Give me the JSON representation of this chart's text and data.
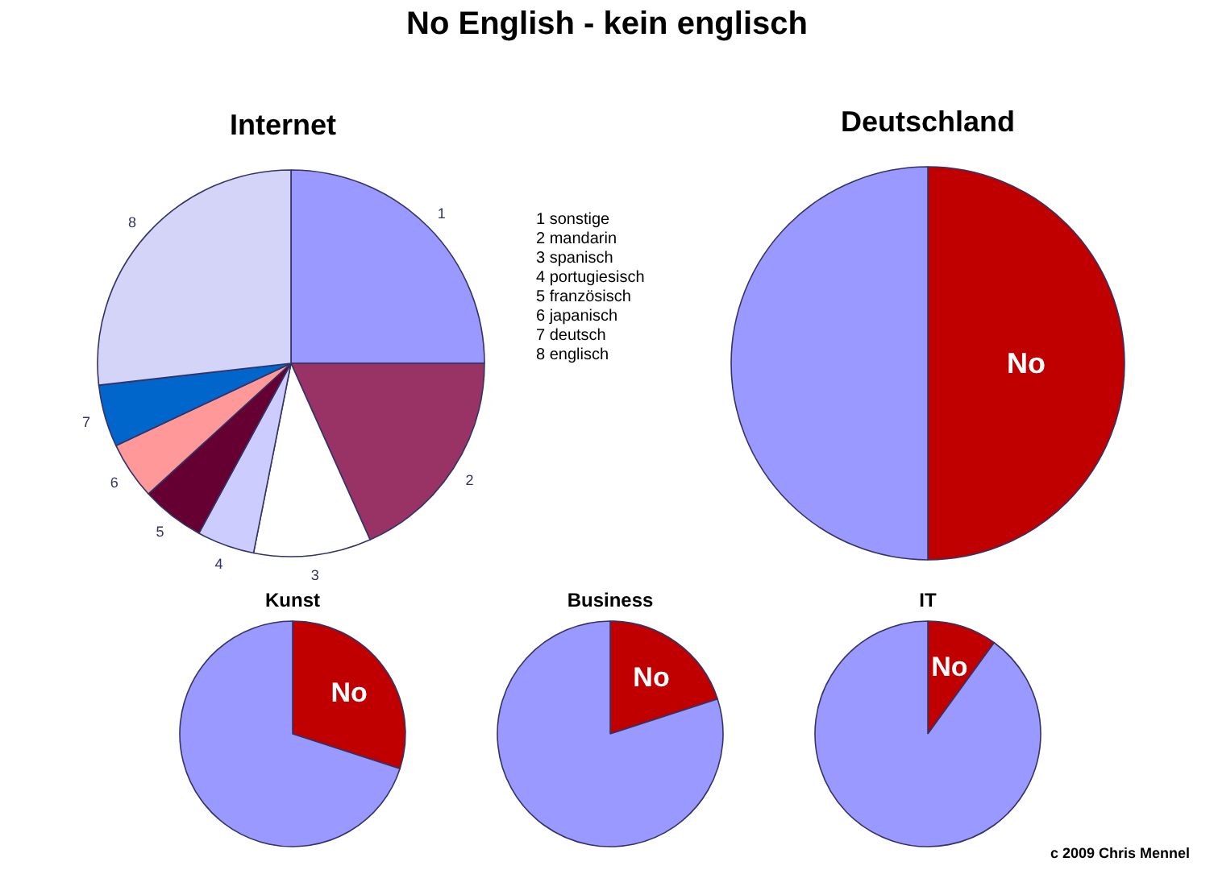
{
  "chart_data": [
    {
      "type": "pie",
      "title": "No English - kein englisch",
      "subtitle": "Internet",
      "categories": [
        "1",
        "2",
        "3",
        "4",
        "5",
        "6",
        "7",
        "8"
      ],
      "values": [
        25,
        18.3,
        9.8,
        4.8,
        5.3,
        4.8,
        5.2,
        26.8
      ],
      "colors": [
        "#9999ff",
        "#993366",
        "#ffffff",
        "#ccccff",
        "#660033",
        "#ff9999",
        "#0066cc",
        "#d4d4f8"
      ],
      "annotations": [
        "1  sonstige",
        "2  mandarin",
        "3  spanisch",
        "4  portugiesisch",
        "5  französisch",
        "6  japanisch",
        "7 deutsch",
        "8  englisch"
      ]
    },
    {
      "type": "pie",
      "title": "Deutschland",
      "categories": [
        "No",
        null
      ],
      "values": [
        50,
        50
      ],
      "colors": [
        "#c00000",
        "#9999ff"
      ]
    },
    {
      "type": "pie",
      "title": "Kunst",
      "categories": [
        "No",
        null
      ],
      "values": [
        30,
        70
      ],
      "colors": [
        "#c00000",
        "#9999ff"
      ]
    },
    {
      "type": "pie",
      "title": "Business",
      "categories": [
        "No",
        null
      ],
      "values": [
        20,
        80
      ],
      "colors": [
        "#c00000",
        "#9999ff"
      ]
    },
    {
      "type": "pie",
      "title": "IT",
      "categories": [
        "No",
        null
      ],
      "values": [
        10,
        90
      ],
      "colors": [
        "#c00000",
        "#9999ff"
      ],
      "annotations": [
        "c  2009   Chris Mennel"
      ]
    }
  ]
}
